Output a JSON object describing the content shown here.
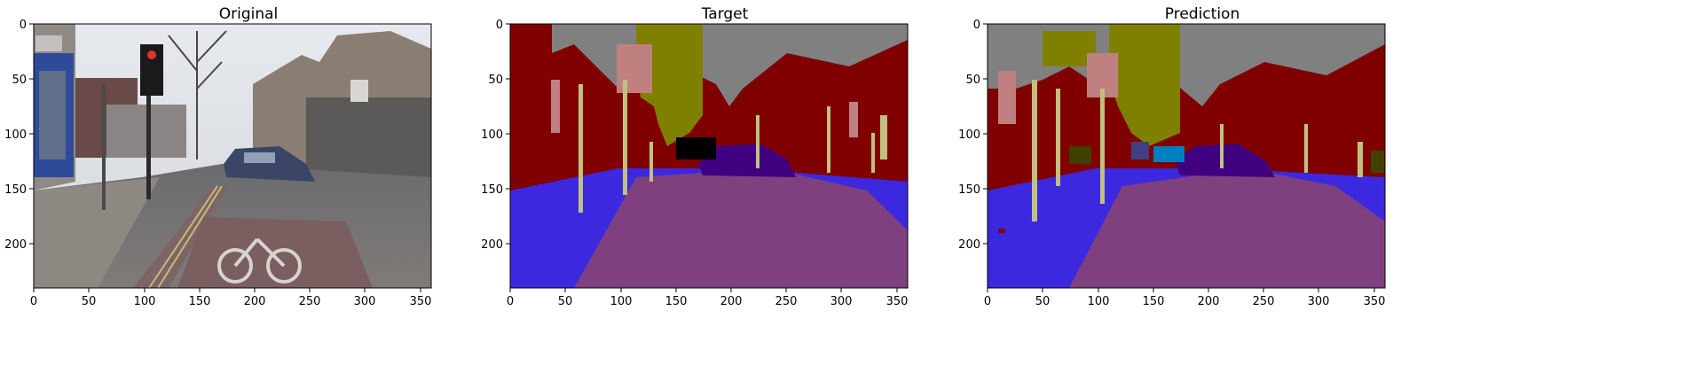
{
  "panels": [
    {
      "title": "Original",
      "x_ticks": [
        "0",
        "50",
        "100",
        "150",
        "200",
        "250",
        "300",
        "350"
      ],
      "y_ticks": [
        "0",
        "50",
        "100",
        "150",
        "200"
      ]
    },
    {
      "title": "Target",
      "x_ticks": [
        "0",
        "50",
        "100",
        "150",
        "200",
        "250",
        "300",
        "350"
      ],
      "y_ticks": [
        "0",
        "50",
        "100",
        "150",
        "200"
      ]
    },
    {
      "title": "Prediction",
      "x_ticks": [
        "0",
        "50",
        "100",
        "150",
        "200",
        "250",
        "300",
        "350"
      ],
      "y_ticks": [
        "0",
        "50",
        "100",
        "150",
        "200"
      ]
    }
  ],
  "colors": {
    "sky": "#808080",
    "building": "#800000",
    "tree": "#808000",
    "road": "#804080",
    "sidewalk": "#3c28de",
    "car": "#400080",
    "pole": "#c0c080",
    "sign": "#c08080",
    "fence": "#404080",
    "pedestrian": "#404000",
    "bicyclist": "#0080c0",
    "void": "#000000"
  }
}
